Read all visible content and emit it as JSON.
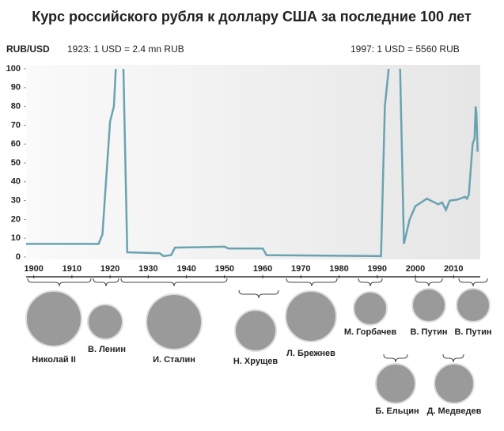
{
  "chart_data": {
    "type": "line",
    "title": "Курс российского рубля к доллару США за последние 100 лет",
    "y_label": "RUB/USD",
    "annotations": [
      "1923: 1 USD = 2.4 mn RUB",
      "1997: 1 USD = 5560 RUB"
    ],
    "color": "#6aa3b0",
    "x": [
      1898,
      1917,
      1918,
      1920,
      1921,
      1921.5,
      1922.5,
      1923.5,
      1924.5,
      1933,
      1934,
      1936,
      1937,
      1950,
      1951,
      1960,
      1961,
      1991,
      1992,
      1993,
      1994.5,
      1996,
      1997,
      1998.5,
      2000,
      2003,
      2006,
      2007,
      2008,
      2009,
      2011,
      2013,
      2013.5,
      2014,
      2015,
      2015.5,
      2015.8,
      2016,
      2016.3
    ],
    "values": [
      7,
      7,
      12,
      72,
      80,
      100,
      null,
      100,
      2.5,
      2,
      0.5,
      1,
      5,
      5.5,
      4.5,
      4.5,
      1,
      0.5,
      80,
      100,
      null,
      100,
      7,
      20,
      27,
      31,
      28,
      29,
      25,
      30,
      30.5,
      32,
      31,
      33,
      60,
      63,
      80,
      76,
      56
    ],
    "xlim": [
      1898,
      2017
    ],
    "ylim": [
      0,
      100
    ],
    "xticks": [
      1900,
      1910,
      1920,
      1930,
      1940,
      1950,
      1960,
      1970,
      1980,
      1990,
      2000,
      2010
    ],
    "yticks": [
      0,
      10,
      20,
      30,
      40,
      50,
      60,
      70,
      80,
      90,
      100
    ]
  },
  "leaders": [
    "Николай II",
    "В. Ленин",
    "И. Сталин",
    "Н. Хрущев",
    "Л. Брежнев",
    "М. Горбачев",
    "В. Путин",
    "В. Путин",
    "Б. Ельцин",
    "Д. Медведев"
  ]
}
